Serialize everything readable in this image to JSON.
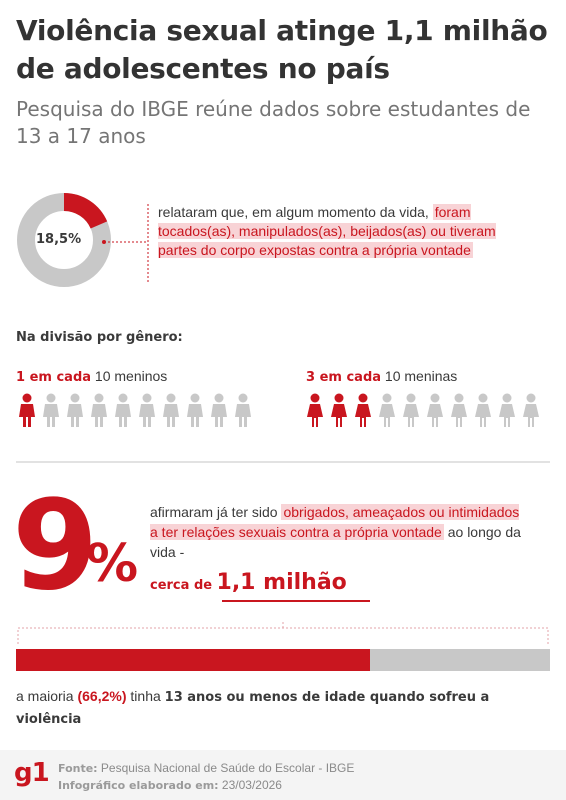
{
  "header": {
    "title": "Violência sexual atinge 1,1 milhão de adolescentes no país",
    "subtitle": "Pesquisa do IBGE reúne dados sobre estudantes de 13 a 17 anos"
  },
  "touched_stat": {
    "value_label": "18,5%",
    "text_lead": "relataram que, em algum momento da vida,",
    "text_highlight": "foram tocados(as), manipulados(as), beijados(as) ou tiveram partes do corpo expostas contra a própria vontade"
  },
  "gender": {
    "section_label": "Na divisão por gênero:",
    "boys": {
      "bold": "1 em cada",
      "rest": "10 meninos"
    },
    "girls": {
      "bold": "3 em cada",
      "rest": "10 meninas"
    }
  },
  "forced_stat": {
    "big_number": "9",
    "percent_sign": "%",
    "text_lead": "afirmaram já ter sido",
    "text_highlight": "obrigados, ameaçados ou intimidados a ter relações sexuais contra a própria vontade",
    "text_tail": "ao longo da vida -",
    "cerca_small": "cerca de",
    "cerca_big": "1,1 milhão"
  },
  "majority": {
    "lead": "a maioria",
    "pct": "(66,2%)",
    "mid": "tinha",
    "bold": "13 anos ou menos de idade quando sofreu a violência"
  },
  "footer": {
    "logo": "g1",
    "source_label": "Fonte:",
    "source_value": "Pesquisa Nacional de Saúde do Escolar - IBGE",
    "made_label": "Infográfico elaborado em:",
    "made_value": "23/03/2026"
  },
  "colors": {
    "accent": "#c9161f",
    "muted": "#c8c8c8",
    "highlight_bg": "#f8d3d6"
  },
  "chart_data": [
    {
      "type": "pie",
      "categories": [
        "tocados/manipulados/beijados/expostos",
        "demais"
      ],
      "values": [
        18.5,
        81.5
      ]
    },
    {
      "type": "table",
      "categories": [
        "meninos",
        "meninas"
      ],
      "values": [
        1,
        3
      ],
      "total": 10
    },
    {
      "type": "bar",
      "categories": [
        "13 anos ou menos",
        "demais"
      ],
      "values": [
        66.2,
        33.8
      ]
    }
  ]
}
